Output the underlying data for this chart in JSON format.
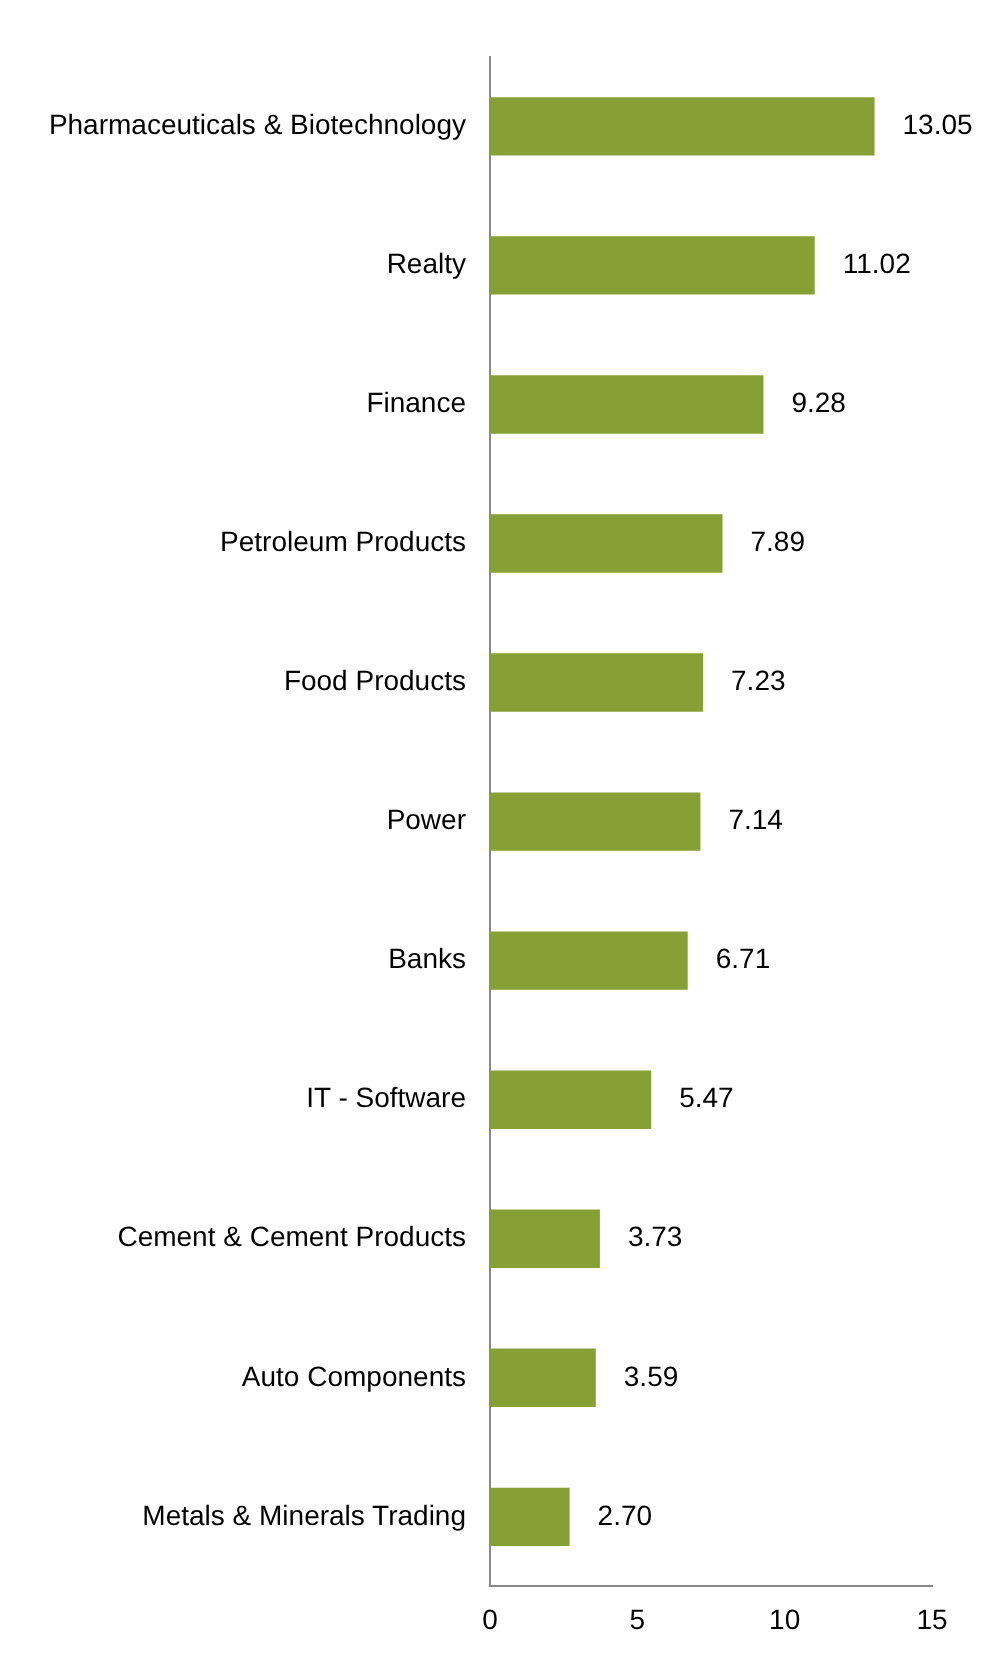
{
  "chart_data": {
    "type": "bar",
    "orientation": "horizontal",
    "categories": [
      "Pharmaceuticals & Biotechnology",
      "Realty",
      "Finance",
      "Petroleum Products",
      "Food Products",
      "Power",
      "Banks",
      "IT - Software",
      "Cement & Cement Products",
      "Auto Components",
      "Metals & Minerals Trading"
    ],
    "values": [
      13.05,
      11.02,
      9.28,
      7.89,
      7.23,
      7.14,
      6.71,
      5.47,
      3.73,
      3.59,
      2.7
    ],
    "value_labels": [
      "13.05",
      "11.02",
      "9.28",
      "7.89",
      "7.23",
      "7.14",
      "6.71",
      "5.47",
      "3.73",
      "3.59",
      "2.70"
    ],
    "color": "#86a036",
    "xlim": [
      0,
      15
    ],
    "xticks": [
      0,
      5,
      10,
      15
    ],
    "grid": false,
    "legend": false
  }
}
